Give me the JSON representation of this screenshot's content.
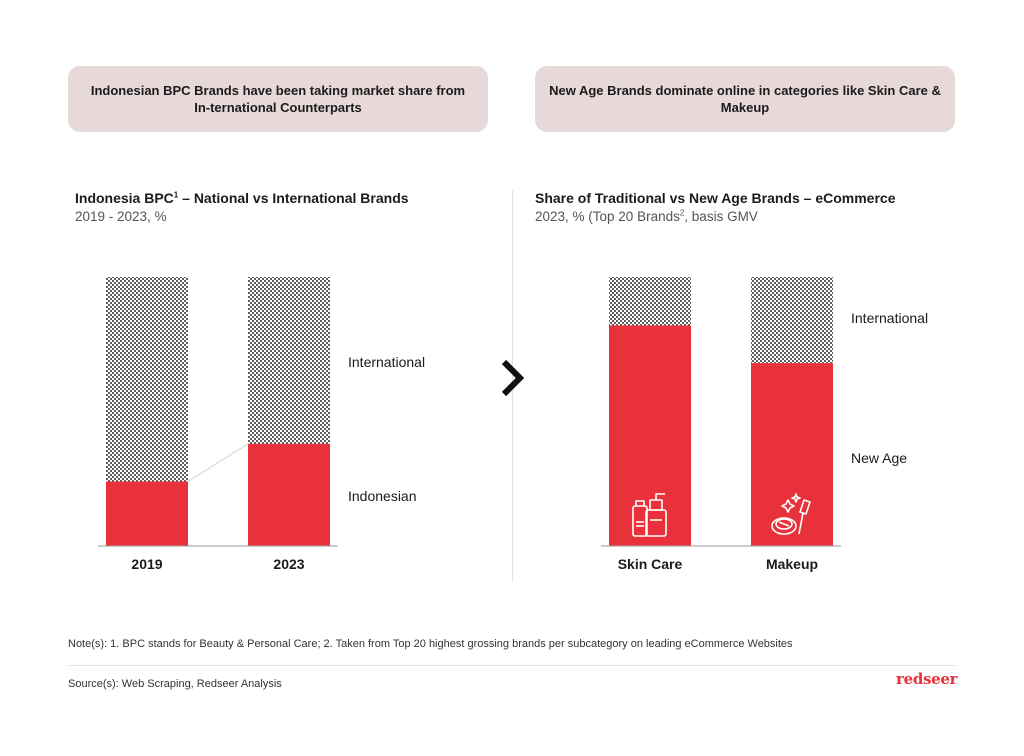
{
  "callouts": {
    "left": "Indonesian BPC Brands have been taking market share from In-ternational Counterparts",
    "right": "New Age Brands dominate online in categories like Skin Care & Makeup"
  },
  "panels": {
    "left": {
      "title": "Indonesia BPC",
      "title_sup": "1",
      "title_rest": " – National vs International Brands",
      "subtitle": "2019 - 2023, %"
    },
    "right": {
      "title": "Share of Traditional vs New Age Brands – eCommerce",
      "subtitle_pre": "2023, % (Top 20 Brands",
      "subtitle_sup": "2",
      "subtitle_post": ", basis GMV"
    }
  },
  "footer": {
    "notes": "Note(s): 1. BPC stands for Beauty & Personal Care; 2. Taken from Top 20 highest grossing brands per subcategory on leading eCommerce Websites",
    "sources": "Source(s): Web Scraping, Redseer Analysis",
    "logo": "redseer"
  },
  "colors": {
    "primary": "#e8313a",
    "callout_bg": "#e7d9d9",
    "dots": "#1b1b1b"
  },
  "icons": {
    "divider_arrow": "chevron-right-icon",
    "skin_care": "skincare-bottles-icon",
    "makeup": "makeup-compact-brush-icon"
  },
  "chart_data": [
    {
      "type": "bar",
      "stacked": true,
      "categories": [
        "2019",
        "2023"
      ],
      "series": [
        {
          "name": "Indonesian",
          "values": [
            24,
            38
          ]
        },
        {
          "name": "International",
          "values": [
            76,
            62
          ]
        }
      ],
      "ylim": [
        0,
        100
      ],
      "legend": "right (labels beside bars)"
    },
    {
      "type": "bar",
      "stacked": true,
      "categories": [
        "Skin Care",
        "Makeup"
      ],
      "series": [
        {
          "name": "New Age",
          "values": [
            82,
            68
          ]
        },
        {
          "name": "International",
          "values": [
            18,
            32
          ]
        }
      ],
      "ylim": [
        0,
        100
      ],
      "legend": "right (labels beside bars)"
    }
  ]
}
